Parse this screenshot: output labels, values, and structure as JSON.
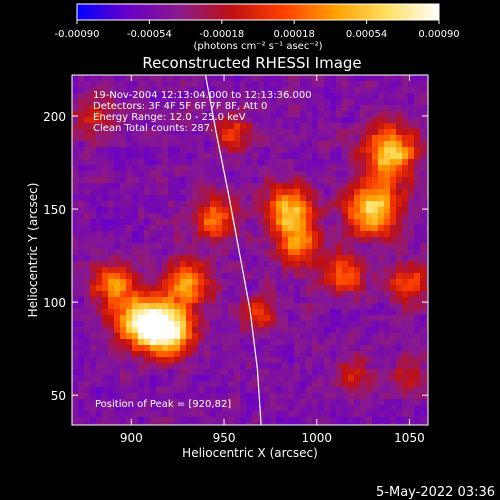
{
  "chart_data": {
    "type": "heatmap",
    "title": "Reconstructed RHESSI Image",
    "xlabel": "Heliocentric X (arcsec)",
    "ylabel": "Heliocentric Y (arcsec)",
    "xlim": [
      868,
      1060
    ],
    "ylim": [
      34,
      222
    ],
    "x_ticks": [
      900,
      950,
      1000,
      1050
    ],
    "y_ticks": [
      50,
      100,
      150,
      200
    ],
    "colorbar": {
      "range": [
        -0.0009,
        0.0009
      ],
      "tick_labels": [
        "-0.00090",
        "-0.00054",
        "-0.00018",
        "0.00018",
        "0.00054",
        "0.00090"
      ],
      "unit_label": "(photons cm⁻² s⁻¹ asec⁻²)",
      "colors": [
        "#0000ff",
        "#6a00c8",
        "#8a1a8a",
        "#c01010",
        "#ff4000",
        "#ffa000",
        "#ffe060",
        "#ffffff"
      ]
    },
    "annotations": [
      "19-Nov-2004 12:13:04.000 to 12:13:36.000",
      "Detectors: 3F 4F 5F 6F 7F 8F, Att 0",
      "Energy Range: 12.0 - 25.0 keV",
      "Clean     Total counts: 287."
    ],
    "peak_label": "Position of Peak = [920,82]",
    "limb": {
      "x": [
        940,
        946,
        952,
        958,
        964,
        968,
        970
      ],
      "y": [
        222,
        190,
        160,
        128,
        96,
        64,
        34
      ]
    },
    "sources": [
      {
        "x": 920,
        "y": 85,
        "intensity": 1.0,
        "sigma": 9
      },
      {
        "x": 905,
        "y": 90,
        "intensity": 0.85,
        "sigma": 10
      },
      {
        "x": 890,
        "y": 110,
        "intensity": 0.55,
        "sigma": 8
      },
      {
        "x": 930,
        "y": 110,
        "intensity": 0.6,
        "sigma": 9
      },
      {
        "x": 945,
        "y": 145,
        "intensity": 0.55,
        "sigma": 8
      },
      {
        "x": 985,
        "y": 150,
        "intensity": 0.75,
        "sigma": 9
      },
      {
        "x": 990,
        "y": 130,
        "intensity": 0.6,
        "sigma": 8
      },
      {
        "x": 1030,
        "y": 150,
        "intensity": 0.85,
        "sigma": 10
      },
      {
        "x": 1040,
        "y": 180,
        "intensity": 0.8,
        "sigma": 10
      },
      {
        "x": 1015,
        "y": 115,
        "intensity": 0.5,
        "sigma": 8
      },
      {
        "x": 1050,
        "y": 110,
        "intensity": 0.45,
        "sigma": 8
      },
      {
        "x": 970,
        "y": 95,
        "intensity": 0.4,
        "sigma": 7
      },
      {
        "x": 880,
        "y": 200,
        "intensity": 0.35,
        "sigma": 8
      },
      {
        "x": 1020,
        "y": 60,
        "intensity": 0.35,
        "sigma": 7
      },
      {
        "x": 1050,
        "y": 60,
        "intensity": 0.3,
        "sigma": 7
      },
      {
        "x": 955,
        "y": 190,
        "intensity": 0.4,
        "sigma": 7
      }
    ]
  },
  "footer": {
    "timestamp": "5-May-2022 03:36"
  }
}
